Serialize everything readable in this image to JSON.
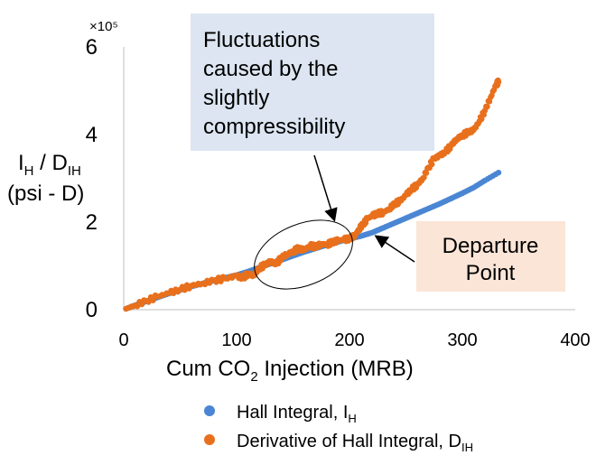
{
  "chart_data": {
    "type": "scatter",
    "multiplier_label": "×10⁵",
    "xlabel_parts": [
      "Cum CO",
      "2",
      " Injection (MRB)"
    ],
    "ylabel_line1_parts": [
      "I",
      "H",
      " / D",
      "IH"
    ],
    "ylabel_line2": "(psi - D)",
    "xlim": [
      0,
      400
    ],
    "ylim": [
      0,
      6
    ],
    "xticks": [
      0,
      100,
      200,
      300,
      400
    ],
    "yticks": [
      0,
      2,
      4,
      6
    ],
    "grid": false,
    "legend_position": "bottom",
    "series": [
      {
        "name_parts": [
          "Hall Integral, I",
          "H"
        ],
        "color": "#4a86d3",
        "points": [
          [
            2,
            0.02
          ],
          [
            10,
            0.1
          ],
          [
            20,
            0.19
          ],
          [
            30,
            0.28
          ],
          [
            40,
            0.37
          ],
          [
            50,
            0.45
          ],
          [
            60,
            0.53
          ],
          [
            70,
            0.6
          ],
          [
            80,
            0.67
          ],
          [
            90,
            0.73
          ],
          [
            100,
            0.79
          ],
          [
            110,
            0.87
          ],
          [
            120,
            0.96
          ],
          [
            130,
            1.05
          ],
          [
            140,
            1.14
          ],
          [
            150,
            1.23
          ],
          [
            160,
            1.32
          ],
          [
            170,
            1.4
          ],
          [
            180,
            1.48
          ],
          [
            190,
            1.55
          ],
          [
            200,
            1.62
          ],
          [
            210,
            1.68
          ],
          [
            220,
            1.76
          ],
          [
            230,
            1.87
          ],
          [
            240,
            1.98
          ],
          [
            250,
            2.09
          ],
          [
            260,
            2.2
          ],
          [
            270,
            2.31
          ],
          [
            280,
            2.42
          ],
          [
            290,
            2.54
          ],
          [
            300,
            2.66
          ],
          [
            310,
            2.79
          ],
          [
            320,
            2.95
          ],
          [
            332,
            3.13
          ]
        ]
      },
      {
        "name_parts": [
          "Derivative of Hall Integral, D",
          "IH"
        ],
        "color": "#e8701c",
        "points": [
          [
            2,
            0.02
          ],
          [
            10,
            0.1
          ],
          [
            20,
            0.2
          ],
          [
            30,
            0.3
          ],
          [
            40,
            0.38
          ],
          [
            50,
            0.46
          ],
          [
            60,
            0.55
          ],
          [
            70,
            0.6
          ],
          [
            80,
            0.67
          ],
          [
            90,
            0.71
          ],
          [
            100,
            0.77
          ],
          [
            105,
            0.72
          ],
          [
            110,
            0.82
          ],
          [
            115,
            0.78
          ],
          [
            120,
            0.95
          ],
          [
            125,
            1.02
          ],
          [
            130,
            1.1
          ],
          [
            135,
            1.04
          ],
          [
            140,
            1.2
          ],
          [
            145,
            1.27
          ],
          [
            150,
            1.33
          ],
          [
            155,
            1.4
          ],
          [
            160,
            1.36
          ],
          [
            165,
            1.46
          ],
          [
            170,
            1.44
          ],
          [
            175,
            1.5
          ],
          [
            180,
            1.49
          ],
          [
            185,
            1.54
          ],
          [
            190,
            1.58
          ],
          [
            195,
            1.6
          ],
          [
            200,
            1.62
          ],
          [
            205,
            1.7
          ],
          [
            208,
            1.83
          ],
          [
            212,
            1.95
          ],
          [
            216,
            2.08
          ],
          [
            220,
            2.14
          ],
          [
            225,
            2.2
          ],
          [
            230,
            2.22
          ],
          [
            235,
            2.3
          ],
          [
            240,
            2.42
          ],
          [
            245,
            2.48
          ],
          [
            250,
            2.62
          ],
          [
            255,
            2.75
          ],
          [
            260,
            2.85
          ],
          [
            265,
            3.0
          ],
          [
            270,
            3.25
          ],
          [
            275,
            3.45
          ],
          [
            280,
            3.52
          ],
          [
            285,
            3.6
          ],
          [
            290,
            3.75
          ],
          [
            295,
            3.9
          ],
          [
            300,
            3.98
          ],
          [
            305,
            4.05
          ],
          [
            310,
            4.1
          ],
          [
            315,
            4.3
          ],
          [
            320,
            4.55
          ],
          [
            325,
            4.85
          ],
          [
            330,
            5.15
          ],
          [
            332,
            5.2
          ]
        ]
      }
    ],
    "annotations": [
      {
        "id": "fluctuations",
        "lines": [
          "Fluctuations",
          "caused by the",
          "slightly",
          "compressibility"
        ],
        "fill": "#dce5f1"
      },
      {
        "id": "departure",
        "lines": [
          "Departure",
          "Point"
        ],
        "fill": "#fbe5d7"
      }
    ]
  }
}
